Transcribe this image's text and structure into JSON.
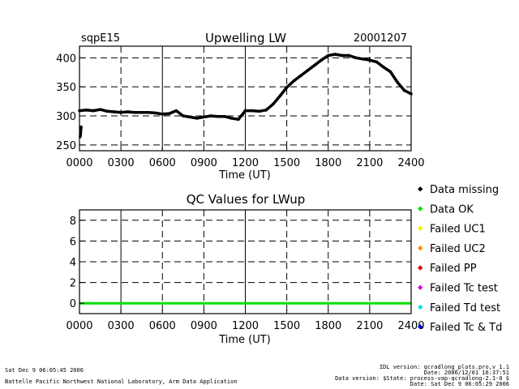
{
  "top_plot": {
    "station": "sqpE15",
    "title": "Upwelling LW",
    "date": "20001207",
    "xlabel": "Time (UT)"
  },
  "qc_plot": {
    "title": "QC Values for LWup",
    "xlabel": "Time (UT)"
  },
  "legend": {
    "items": [
      {
        "label": "Data missing",
        "color": "#000000"
      },
      {
        "label": "Data OK",
        "color": "#00e000"
      },
      {
        "label": "Failed UC1",
        "color": "#f0f000"
      },
      {
        "label": "Failed UC2",
        "color": "#ff8c00"
      },
      {
        "label": "Failed PP",
        "color": "#e00000"
      },
      {
        "label": "Failed Tc test",
        "color": "#e000e0"
      },
      {
        "label": "Failed Td test",
        "color": "#00e0e0"
      },
      {
        "label": "Failed Tc & Td",
        "color": "#0000e0"
      }
    ]
  },
  "footer": {
    "left_line1": "Sat Dec  9 06:05:45 2006",
    "left_line2": "Battelle Pacific Northwest National Laboratory, Arm Data Application",
    "right_line1": "IDL version: qcradlong_plots.pro,v 1.1",
    "right_line2": "Date: 2006/12/01 16:37:51",
    "right_line3": "Data version: $State: process-vap-qcradlong-2.1-0 $",
    "right_line4": "Date: Sat Dec  9 06:05:29 2006"
  },
  "chart_data": [
    {
      "type": "line",
      "title": "Upwelling LW",
      "xlabel": "Time (UT)",
      "ylabel": "",
      "xlim": [
        0,
        2400
      ],
      "ylim": [
        240,
        420
      ],
      "x_ticks": [
        0,
        300,
        600,
        900,
        1200,
        1500,
        1800,
        2100,
        2400
      ],
      "x_tick_labels": [
        "0000",
        "0300",
        "0600",
        "0900",
        "1200",
        "1500",
        "1800",
        "2100",
        "2400"
      ],
      "y_ticks": [
        250,
        300,
        350,
        400
      ],
      "y_tick_labels": [
        "250",
        "300",
        "350",
        "400"
      ],
      "grid": true,
      "series": [
        {
          "color": "#000000",
          "x": [
            0,
            50,
            100,
            150,
            200,
            250,
            300,
            350,
            400,
            450,
            500,
            550,
            600,
            650,
            700,
            750,
            800,
            850,
            900,
            950,
            1000,
            1050,
            1100,
            1150,
            1200,
            1250,
            1300,
            1350,
            1400,
            1450,
            1500,
            1550,
            1600,
            1650,
            1700,
            1750,
            1800,
            1850,
            1900,
            1950,
            2000,
            2050,
            2100,
            2150,
            2200,
            2250,
            2300,
            2350,
            2400
          ],
          "y": [
            309,
            310,
            309,
            311,
            308,
            307,
            306,
            307,
            306,
            306,
            306,
            305,
            303,
            304,
            309,
            300,
            298,
            296,
            298,
            300,
            299,
            299,
            296,
            294,
            309,
            309,
            308,
            310,
            320,
            334,
            349,
            360,
            369,
            378,
            387,
            396,
            404,
            406,
            404,
            404,
            400,
            398,
            396,
            393,
            384,
            376,
            358,
            344,
            338
          ]
        },
        {
          "name": "",
          "color": "#000000",
          "x": [
            5,
            8,
            12
          ],
          "y": [
            264,
            270,
            281
          ]
        }
      ]
    },
    {
      "type": "line",
      "title": "QC Values for LWup",
      "xlabel": "Time (UT)",
      "ylabel": "",
      "xlim": [
        0,
        2400
      ],
      "ylim": [
        -1,
        9
      ],
      "x_ticks": [
        0,
        300,
        600,
        900,
        1200,
        1500,
        1800,
        2100,
        2400
      ],
      "x_tick_labels": [
        "0000",
        "0300",
        "0600",
        "0900",
        "1200",
        "1500",
        "1800",
        "2100",
        "2400"
      ],
      "y_ticks": [
        0,
        2,
        4,
        6,
        8
      ],
      "y_tick_labels": [
        "0",
        "2",
        "4",
        "6",
        "8"
      ],
      "grid": true,
      "series": [
        {
          "color": "#00e000",
          "x": [
            0,
            2400
          ],
          "y": [
            0,
            0
          ]
        }
      ]
    }
  ]
}
